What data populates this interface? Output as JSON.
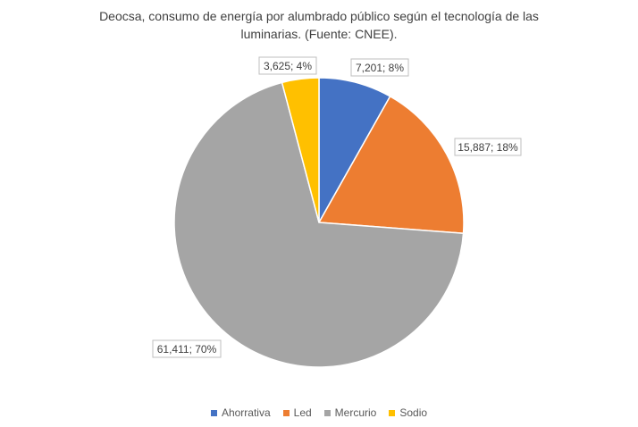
{
  "chart_data": {
    "type": "pie",
    "title_lines": [
      "Deocsa,  consumo de energía por alumbrado público según el tecnología de las",
      "luminarias. (Fuente: CNEE)."
    ],
    "slices": [
      {
        "name": "Ahorrativa",
        "value": 7201,
        "percent": 8,
        "label": "7,201; 8%",
        "color": "#4472C4"
      },
      {
        "name": "Led",
        "value": 15887,
        "percent": 18,
        "label": "15,887; 18%",
        "color": "#ED7D31"
      },
      {
        "name": "Mercurio",
        "value": 61411,
        "percent": 70,
        "label": "61,411; 70%",
        "color": "#A5A5A5"
      },
      {
        "name": "Sodio",
        "value": 3625,
        "percent": 4,
        "label": "3,625; 4%",
        "color": "#FFC000"
      }
    ],
    "legend_position": "bottom"
  }
}
